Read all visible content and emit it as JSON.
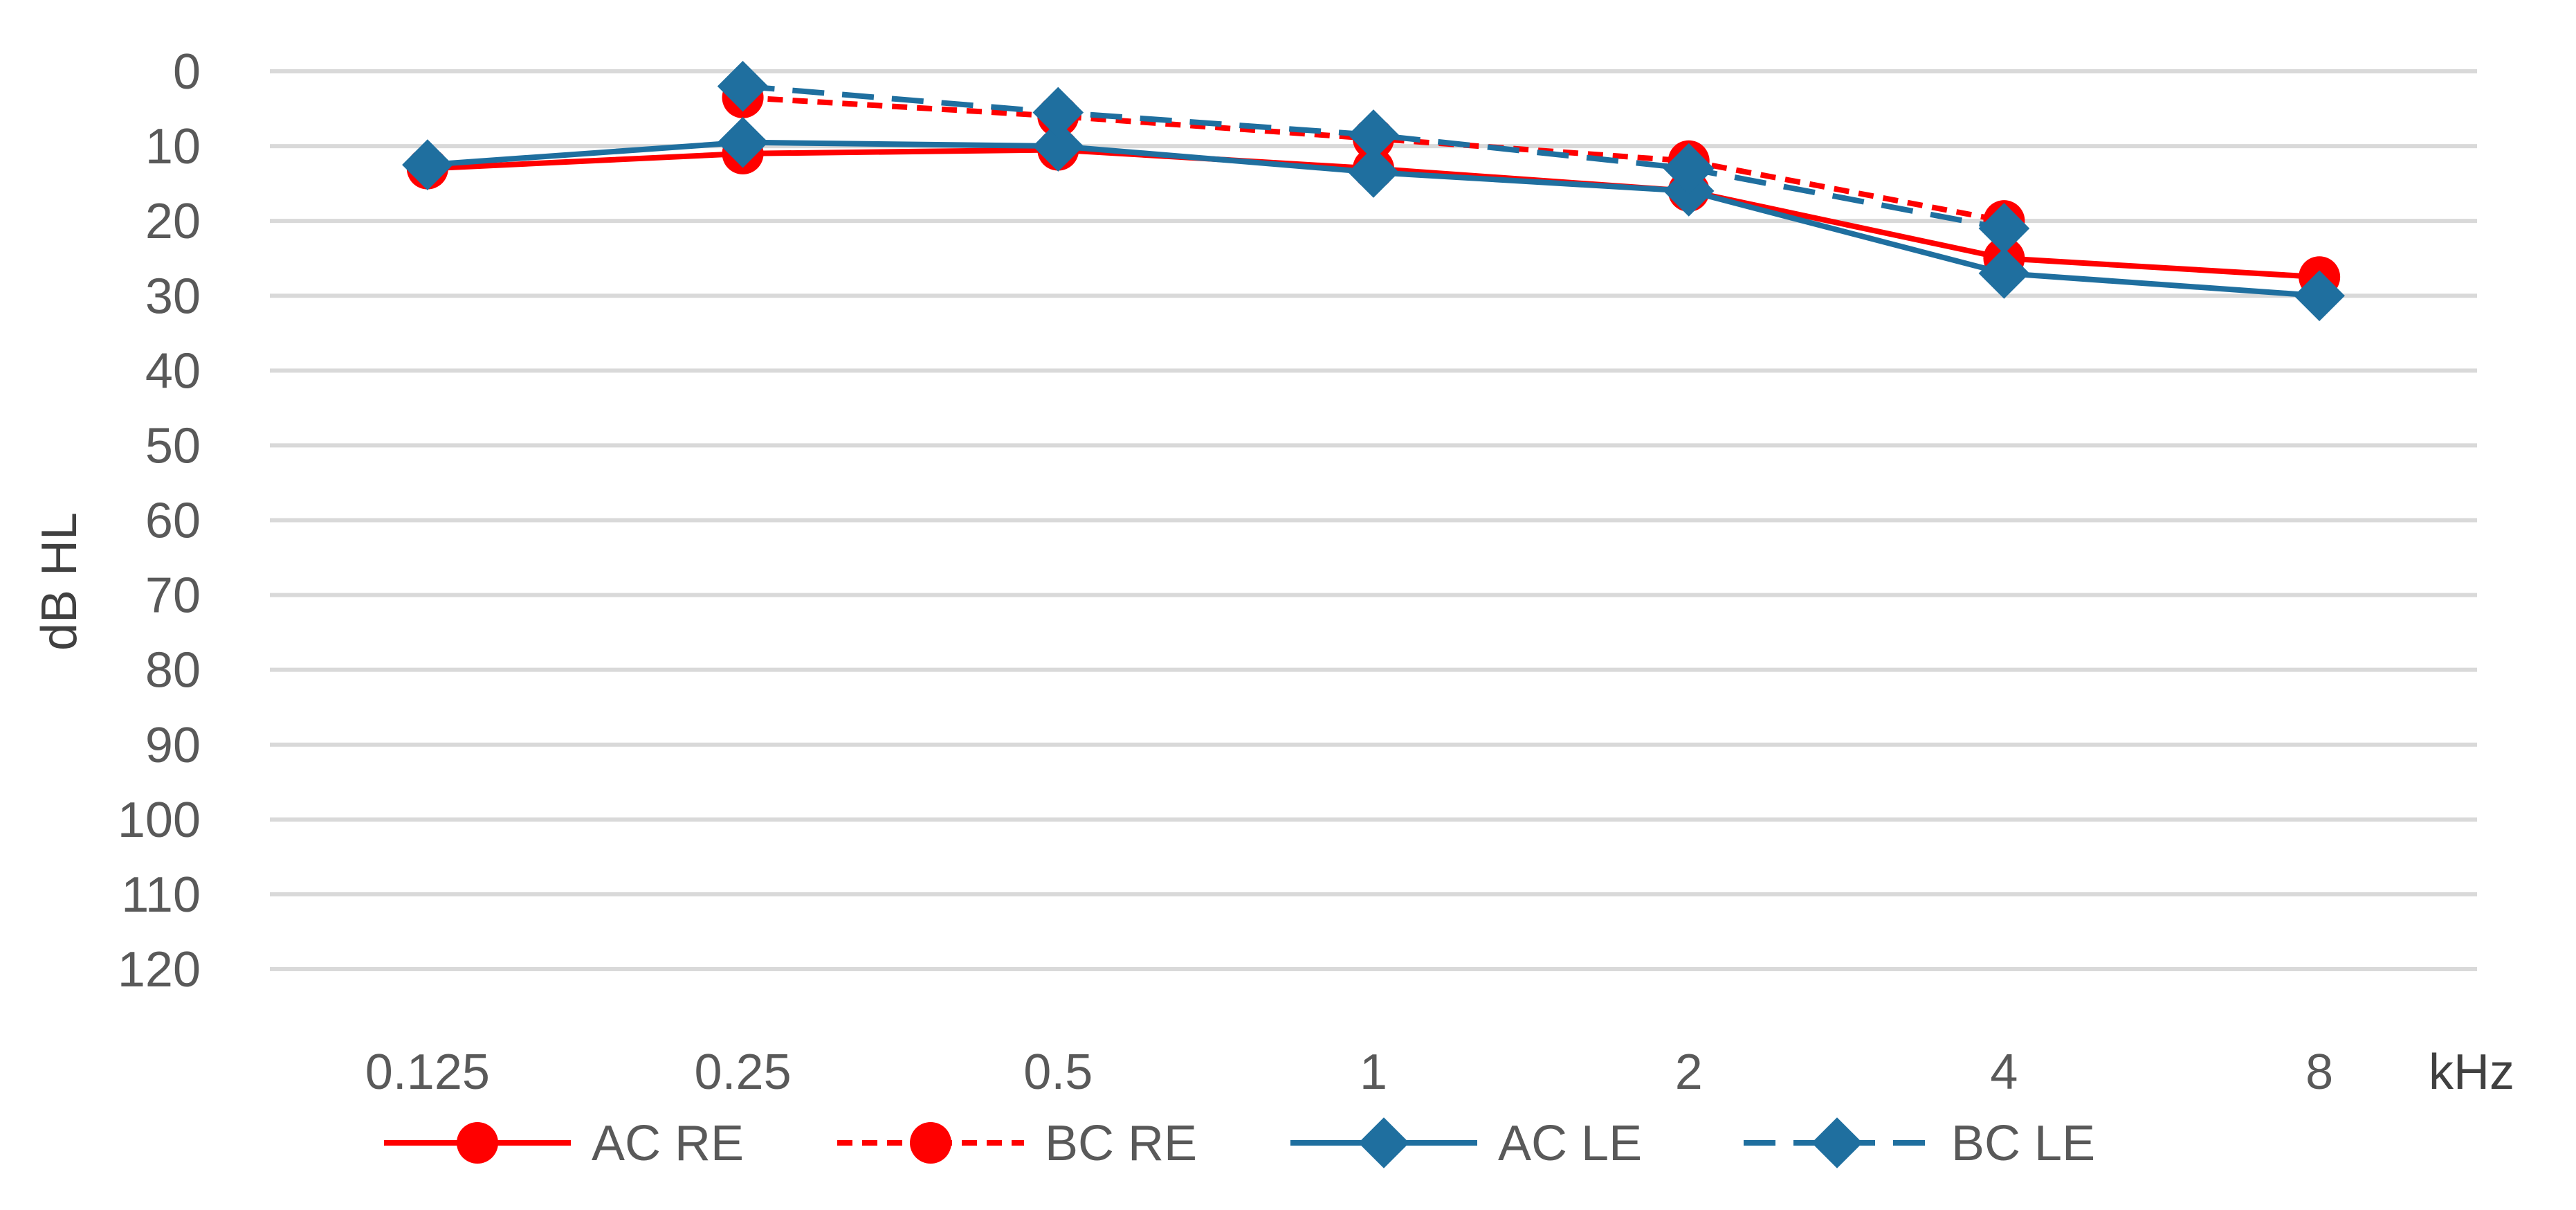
{
  "chart_data": {
    "type": "line",
    "title": "",
    "xlabel": "kHz",
    "ylabel": "dB HL",
    "categories": [
      "0.125",
      "0.25",
      "0.5",
      "1",
      "2",
      "4",
      "8"
    ],
    "y_ticks": [
      0,
      10,
      20,
      30,
      40,
      50,
      60,
      70,
      80,
      90,
      100,
      110,
      120
    ],
    "ylim": [
      0,
      120
    ],
    "y_inverted": true,
    "grid": true,
    "legend_position": "bottom",
    "series": [
      {
        "name": "AC RE",
        "color": "#ff0000",
        "dash": "solid",
        "marker": "circle",
        "values": [
          13,
          11,
          10.5,
          13,
          16,
          25,
          27.5
        ]
      },
      {
        "name": "BC RE",
        "color": "#ff0000",
        "dash": "dotted",
        "marker": "circle",
        "values": [
          null,
          3.5,
          6,
          9,
          12,
          20,
          null
        ]
      },
      {
        "name": "AC LE",
        "color": "#1f6f9f",
        "dash": "solid",
        "marker": "diamond",
        "values": [
          12.5,
          9.5,
          10,
          13.5,
          16,
          27,
          30
        ]
      },
      {
        "name": "BC LE",
        "color": "#1f6f9f",
        "dash": "dashed",
        "marker": "diamond",
        "values": [
          null,
          2,
          5.5,
          8.5,
          13,
          21,
          null
        ]
      }
    ]
  }
}
